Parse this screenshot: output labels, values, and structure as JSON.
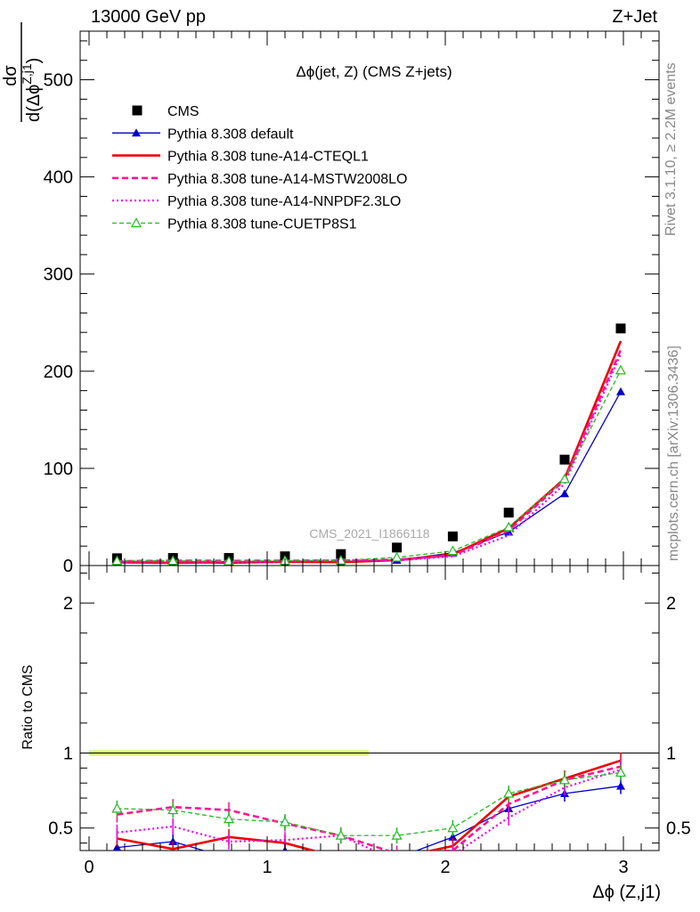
{
  "header": {
    "left": "13000 GeV pp",
    "right": "Z+Jet"
  },
  "side_texts": {
    "rivet": "Rivet 3.1.10, ≥ 2.2M events",
    "mcplots": "mcplots.cern.ch [arXiv:1306.3436]"
  },
  "analysis_label": "CMS_2021_I1866118",
  "chart_data": [
    {
      "panel": "main",
      "type": "line",
      "title": "Δϕ(jet, Z) (CMS Z+jets)",
      "ylabel": "dσ/d(Δϕ^{Z,j1})",
      "ylim": [
        0,
        550
      ],
      "yticks": [
        0,
        100,
        200,
        300,
        400,
        500
      ],
      "x": [
        0.157,
        0.471,
        0.785,
        1.1,
        1.414,
        1.728,
        2.042,
        2.356,
        2.67,
        2.985
      ],
      "series": [
        {
          "name": "CMS",
          "style": "data",
          "color": "#000000",
          "values": [
            7.5,
            7.8,
            7.8,
            9.5,
            11.8,
            18.5,
            30,
            54.5,
            109,
            244
          ]
        },
        {
          "name": "Pythia 8.308 default",
          "style": "solid-triangle",
          "color": "#0000cc",
          "values": [
            2.8,
            3.2,
            2.3,
            3.3,
            3.5,
            5.5,
            13,
            34.5,
            74,
            179
          ]
        },
        {
          "name": "Pythia 8.308 tune-A14-CTEQL1",
          "style": "solid-thick",
          "color": "#ee0000",
          "values": [
            3.3,
            2.8,
            3.5,
            3.8,
            3.5,
            5.5,
            11.5,
            38.5,
            89.5,
            231
          ]
        },
        {
          "name": "Pythia 8.308 tune-A14-MSTW2008LO",
          "style": "dashed",
          "color": "#ff1493",
          "values": [
            4.5,
            5.0,
            4.9,
            5.0,
            5.2,
            6.0,
            10.5,
            36,
            88,
            222
          ]
        },
        {
          "name": "Pythia 8.308 tune-A14-NNPDF2.3LO",
          "style": "dotted",
          "color": "#ee00ee",
          "values": [
            3.6,
            4.0,
            3.2,
            4.0,
            5.3,
            5.2,
            9.5,
            31,
            84,
            218
          ]
        },
        {
          "name": "Pythia 8.308 tune-CUETP8S1",
          "style": "dashed-open-triangle",
          "color": "#22bb22",
          "values": [
            4.8,
            4.9,
            4.4,
            5.1,
            5.3,
            8.3,
            15,
            39.5,
            89,
            201
          ]
        }
      ],
      "legend": "top-left"
    },
    {
      "panel": "ratio",
      "type": "line",
      "xlabel": "Δϕ (Z,j1)",
      "ylabel": "Ratio to CMS",
      "xlim": [
        -0.05,
        3.2
      ],
      "ylim": [
        0.35,
        2.25
      ],
      "xticks": [
        0,
        1,
        2,
        3
      ],
      "yticks": [
        0.5,
        1,
        2
      ],
      "x": [
        0.157,
        0.471,
        0.785,
        1.1,
        1.414,
        1.728,
        2.042,
        2.356,
        2.67,
        2.985
      ],
      "band": {
        "y": 1.0,
        "half_width": 0.02,
        "color": "#ccff66"
      },
      "series": [
        {
          "name": "Pythia 8.308 default",
          "values": [
            0.37,
            0.41,
            0.3,
            0.35,
            0.3,
            0.3,
            0.44,
            0.63,
            0.73,
            0.78
          ]
        },
        {
          "name": "Pythia 8.308 tune-A14-CTEQL1",
          "values": [
            0.43,
            0.36,
            0.44,
            0.4,
            0.3,
            0.3,
            0.38,
            0.71,
            0.83,
            0.95
          ]
        },
        {
          "name": "Pythia 8.308 tune-A14-MSTW2008LO",
          "values": [
            0.59,
            0.64,
            0.62,
            0.53,
            0.45,
            0.33,
            0.35,
            0.66,
            0.82,
            0.91
          ]
        },
        {
          "name": "Pythia 8.308 tune-A14-NNPDF2.3LO",
          "values": [
            0.47,
            0.51,
            0.41,
            0.42,
            0.45,
            0.28,
            0.32,
            0.57,
            0.77,
            0.89
          ]
        },
        {
          "name": "Pythia 8.308 tune-CUETP8S1",
          "values": [
            0.63,
            0.62,
            0.56,
            0.54,
            0.45,
            0.45,
            0.5,
            0.73,
            0.82,
            0.87
          ]
        }
      ]
    }
  ]
}
